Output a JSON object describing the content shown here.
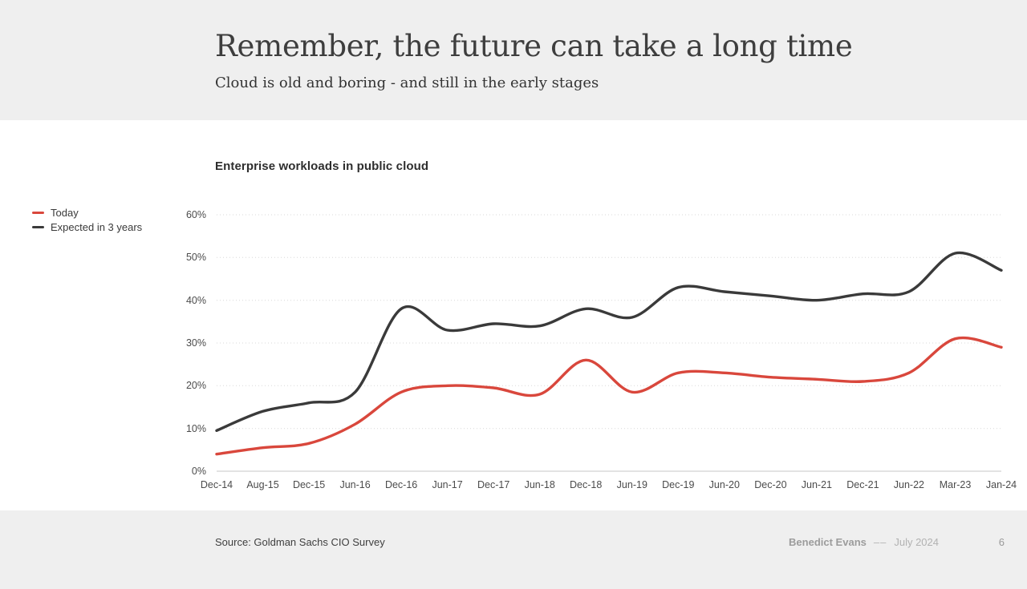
{
  "header": {
    "title": "Remember, the future can take a long time",
    "subtitle": "Cloud is old and boring - and still in the early stages"
  },
  "chart": {
    "title": "Enterprise workloads in public cloud"
  },
  "chart_data": {
    "type": "line",
    "title": "Enterprise workloads in public cloud",
    "categories": [
      "Dec-14",
      "Aug-15",
      "Dec-15",
      "Jun-16",
      "Dec-16",
      "Jun-17",
      "Dec-17",
      "Jun-18",
      "Dec-18",
      "Jun-19",
      "Dec-19",
      "Jun-20",
      "Dec-20",
      "Jun-21",
      "Dec-21",
      "Jun-22",
      "Mar-23",
      "Jan-24"
    ],
    "series": [
      {
        "name": "Today",
        "color": "#d9473c",
        "values": [
          4,
          5.5,
          6.5,
          11,
          18.5,
          20,
          19.5,
          18,
          26,
          18.5,
          23,
          23,
          22,
          21.5,
          21,
          23,
          31,
          29
        ]
      },
      {
        "name": "Expected in 3 years",
        "color": "#3a3a3a",
        "values": [
          9.5,
          14,
          16,
          18.5,
          38,
          33,
          34.5,
          34,
          38,
          36,
          43,
          42,
          41,
          40,
          41.5,
          42,
          51,
          47
        ]
      }
    ],
    "ylabel": "",
    "xlabel": "",
    "ylim": [
      0,
      60
    ],
    "ytick_step": 10,
    "yticks": [
      "0%",
      "10%",
      "20%",
      "30%",
      "40%",
      "50%",
      "60%"
    ],
    "grid": "dotted-horizontal",
    "legend_position": "left",
    "colors": {
      "gridline": "#d8d8d8",
      "baseline": "#c7c7c7",
      "axis_text": "#4b4b4b"
    }
  },
  "footer": {
    "source": "Source: Goldman Sachs CIO Survey",
    "author": "Benedict Evans",
    "separator": "––",
    "date": "July 2024",
    "page": "6"
  }
}
